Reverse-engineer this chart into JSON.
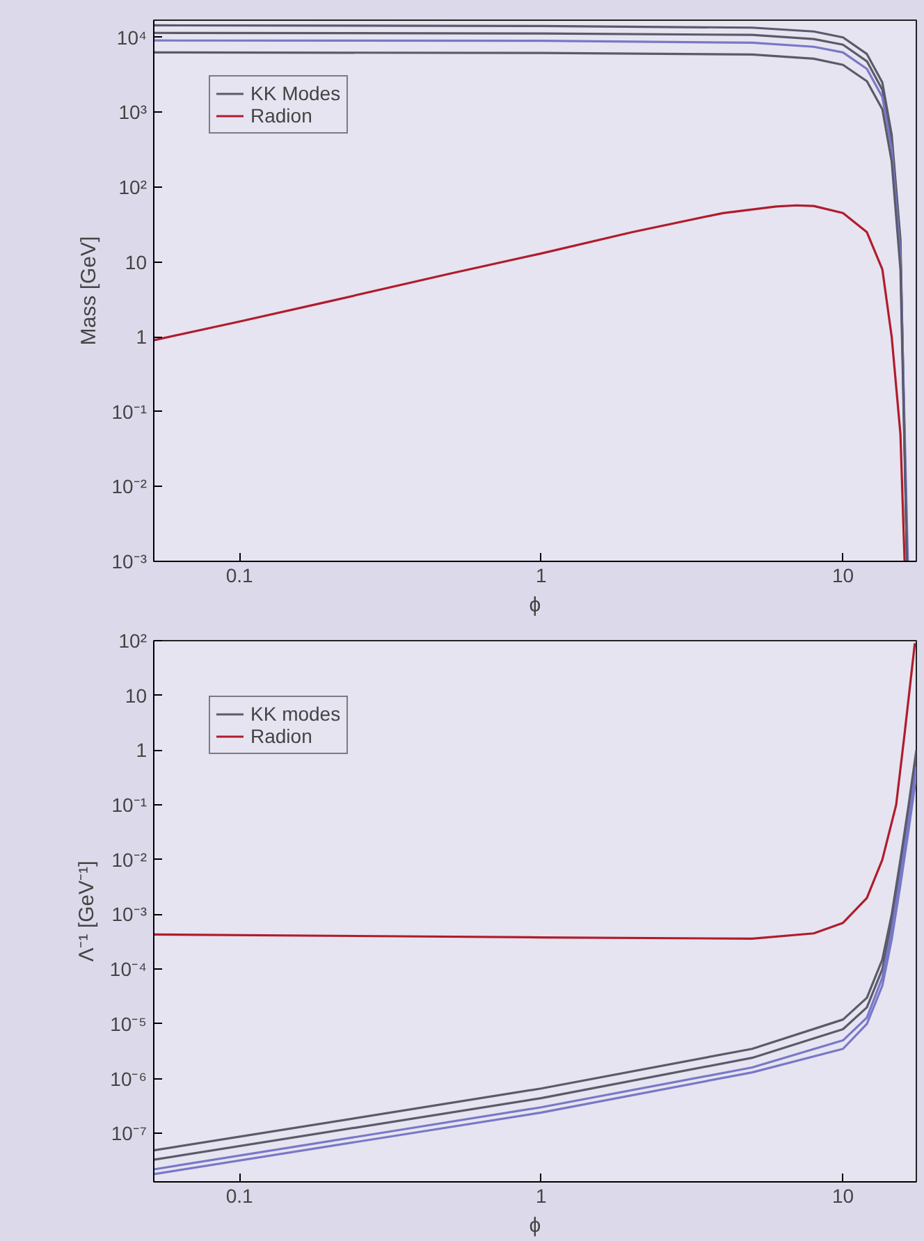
{
  "chart_data": [
    {
      "type": "line",
      "xlabel": "ϕ",
      "ylabel": "Mass [GeV]",
      "log": "xy",
      "grid": false,
      "legend": "top left",
      "xlim": [
        0.052,
        17.5
      ],
      "ylim": [
        0.001,
        17000
      ],
      "xticks": [
        0.1,
        1,
        10
      ],
      "yticks": [
        {
          "value": 0.001,
          "label": "10⁻³"
        },
        {
          "value": 0.01,
          "label": "10⁻²"
        },
        {
          "value": 0.1,
          "label": "10⁻¹"
        },
        1,
        10,
        {
          "value": 100,
          "label": "10²"
        },
        {
          "value": 1000,
          "label": "10³"
        },
        {
          "value": 10000,
          "label": "10⁴"
        }
      ],
      "series": [
        {
          "name": "KK Modes",
          "color": "#5a5a6a",
          "x": [
            0.052,
            1,
            5,
            8,
            10,
            12,
            13.5,
            14.5,
            15.5,
            16.3
          ],
          "values": [
            14500,
            14200,
            13500,
            12000,
            10000,
            6000,
            2500,
            500,
            20,
            0.001
          ]
        },
        {
          "color": "#5a5a6a",
          "x": [
            0.052,
            1,
            5,
            8,
            10,
            12,
            13.5,
            14.5,
            15.5,
            16.3
          ],
          "values": [
            11500,
            11300,
            10800,
            9500,
            8000,
            4800,
            2000,
            400,
            15,
            0.001
          ]
        },
        {
          "color": "#7878c8",
          "x": [
            0.052,
            1,
            5,
            8,
            10,
            12,
            13.5,
            14.5,
            15.5,
            16.4
          ],
          "values": [
            9100,
            9000,
            8500,
            7500,
            6300,
            3800,
            1600,
            320,
            12,
            0.001
          ]
        },
        {
          "color": "#5a5a6a",
          "x": [
            0.052,
            1,
            5,
            8,
            10,
            12,
            13.5,
            14.5,
            15.5,
            16.3
          ],
          "values": [
            6300,
            6200,
            5900,
            5200,
            4300,
            2600,
            1100,
            220,
            8,
            0.001
          ]
        },
        {
          "name": "Radion",
          "color": "#b01c2c",
          "x": [
            0.052,
            0.1,
            0.2,
            0.5,
            1,
            2,
            4,
            6,
            7,
            8,
            10,
            12,
            13.5,
            14.5,
            15.5,
            16
          ],
          "values": [
            0.9,
            1.6,
            3,
            7,
            13,
            25,
            45,
            55,
            57,
            56,
            45,
            25,
            8,
            1,
            0.05,
            0.001
          ]
        }
      ]
    },
    {
      "type": "line",
      "xlabel": "ϕ",
      "ylabel": "Λ⁻¹ [GeV⁻¹]",
      "log": "xy",
      "grid": false,
      "legend": "top left",
      "xlim": [
        0.052,
        17.5
      ],
      "ylim": [
        1.3e-08,
        100
      ],
      "xticks": [
        0.1,
        1,
        10
      ],
      "yticks": [
        {
          "value": 1e-07,
          "label": "10⁻⁷"
        },
        {
          "value": 1e-06,
          "label": "10⁻⁶"
        },
        {
          "value": 1e-05,
          "label": "10⁻⁵"
        },
        {
          "value": 0.0001,
          "label": "10⁻⁴"
        },
        {
          "value": 0.001,
          "label": "10⁻³"
        },
        {
          "value": 0.01,
          "label": "10⁻²"
        },
        {
          "value": 0.1,
          "label": "10⁻¹"
        },
        1,
        10,
        {
          "value": 100,
          "label": "10²"
        }
      ],
      "series": [
        {
          "name": "KK modes",
          "color": "#5a5a6a",
          "x": [
            0.052,
            1,
            5,
            10,
            12,
            13.5,
            14.5,
            15.5,
            16.5,
            17.5
          ],
          "values": [
            4.9e-08,
            6.6e-07,
            3.5e-06,
            1.2e-05,
            3e-05,
            0.00015,
            0.001,
            0.01,
            0.1,
            1
          ]
        },
        {
          "color": "#5a5a6a",
          "x": [
            0.052,
            1,
            5,
            10,
            12,
            13.5,
            14.5,
            15.5,
            16.5,
            17.5
          ],
          "values": [
            3.3e-08,
            4.4e-07,
            2.4e-06,
            8e-06,
            2e-05,
            0.0001,
            0.0007,
            0.007,
            0.07,
            0.7
          ]
        },
        {
          "color": "#7878c8",
          "x": [
            0.052,
            1,
            5,
            10,
            12,
            13.5,
            14.5,
            15.5,
            16.5,
            17.5
          ],
          "values": [
            2.2e-08,
            3e-07,
            1.6e-06,
            5e-06,
            1.3e-05,
            7e-05,
            0.0005,
            0.005,
            0.05,
            0.5
          ]
        },
        {
          "color": "#7878c8",
          "x": [
            0.052,
            1,
            5,
            10,
            12,
            13.5,
            14.5,
            15.5,
            16.5,
            17.5
          ],
          "values": [
            1.8e-08,
            2.4e-07,
            1.3e-06,
            3.5e-06,
            1e-05,
            5e-05,
            0.00035,
            0.0035,
            0.035,
            0.35
          ]
        },
        {
          "name": "Radion",
          "color": "#b01c2c",
          "x": [
            0.052,
            1,
            5,
            8,
            10,
            12,
            13.5,
            15,
            16,
            17.3
          ],
          "values": [
            0.00043,
            0.00038,
            0.00036,
            0.00045,
            0.0007,
            0.002,
            0.01,
            0.1,
            2,
            90
          ]
        }
      ]
    }
  ]
}
